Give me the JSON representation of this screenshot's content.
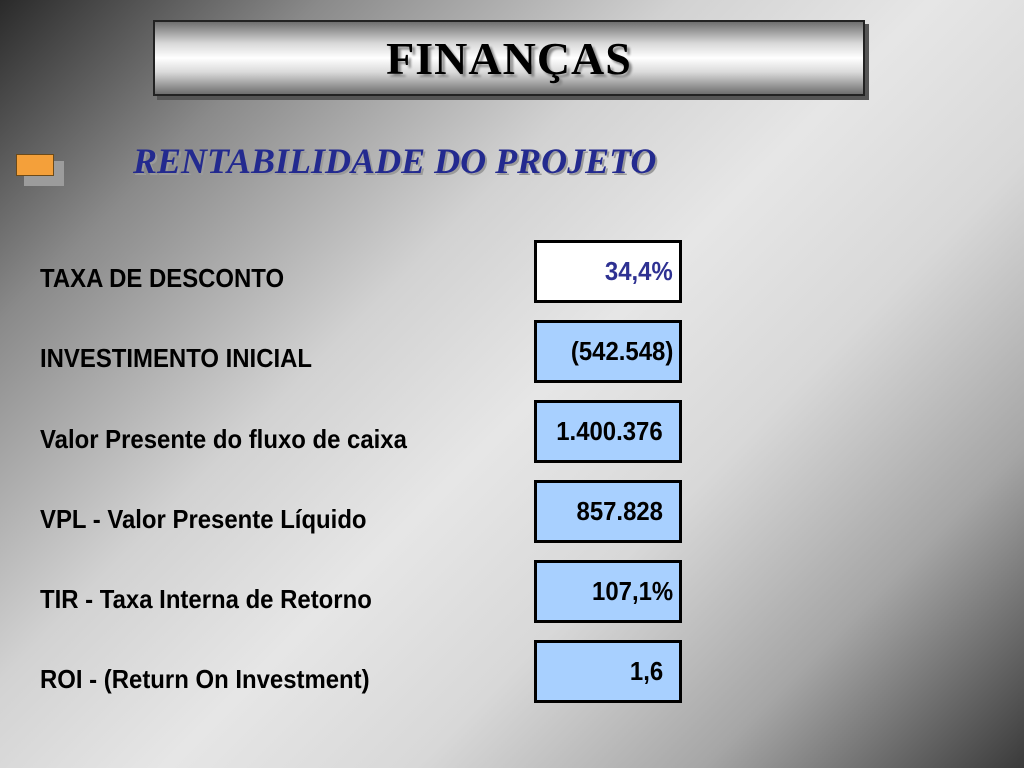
{
  "title": "FINANÇAS",
  "subtitle": "RENTABILIDADE DO PROJETO",
  "rows": [
    {
      "label": "TAXA DE DESCONTO",
      "value": "34,4%"
    },
    {
      "label": "INVESTIMENTO INICIAL",
      "value": "(542.548)"
    },
    {
      "label": "Valor Presente do fluxo de caixa",
      "value": "1.400.376"
    },
    {
      "label": "VPL - Valor Presente Líquido",
      "value": "857.828"
    },
    {
      "label": "TIR - Taxa Interna de Retorno",
      "value": "107,1%"
    },
    {
      "label": "ROI - (Return On Investment)",
      "value": "1,6"
    }
  ],
  "colors": {
    "bullet": "#f4a03a",
    "subtitle": "#232a8f",
    "value_box": "#a8d0ff",
    "first_value_text": "#2e3192"
  }
}
